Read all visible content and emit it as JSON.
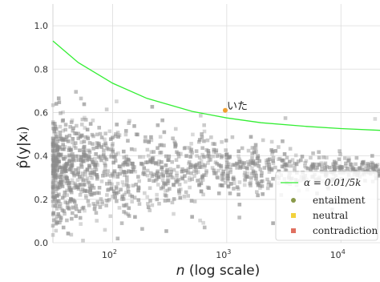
{
  "chart_data": {
    "type": "scatter",
    "xscale": "log",
    "xlim": [
      30,
      22000
    ],
    "ylim": [
      0,
      1.1
    ],
    "xlabel_main": "n",
    "xlabel_rest": " (log scale)",
    "ylabel": "p̂(y|xᵢ)",
    "grid": true,
    "y_ticks": [
      "0.0",
      "0.2",
      "0.4",
      "0.6",
      "0.8",
      "1.0"
    ],
    "x_ticks": [
      {
        "value": 100,
        "label": "10",
        "exp": "2"
      },
      {
        "value": 1000,
        "label": "10",
        "exp": "3"
      },
      {
        "value": 10000,
        "label": "10",
        "exp": "4"
      }
    ],
    "threshold_curve": {
      "name": "α = 0.01/5k",
      "color": "#33ee33",
      "x": [
        30,
        50,
        100,
        200,
        500,
        1000,
        2000,
        5000,
        10000,
        22000
      ],
      "y": [
        0.93,
        0.83,
        0.735,
        0.665,
        0.605,
        0.575,
        0.553,
        0.536,
        0.526,
        0.518
      ]
    },
    "annotation": {
      "label": "いた",
      "x": 970,
      "y": 0.61,
      "color": "#f0a030"
    },
    "point_color": "#8c8c8c",
    "legend": {
      "position": "lower-right",
      "entries": [
        {
          "name": "entailment",
          "color": "#8a9a4a"
        },
        {
          "name": "neutral",
          "color": "#f2d23c"
        },
        {
          "name": "contradiction",
          "color": "#e07060"
        }
      ]
    }
  }
}
